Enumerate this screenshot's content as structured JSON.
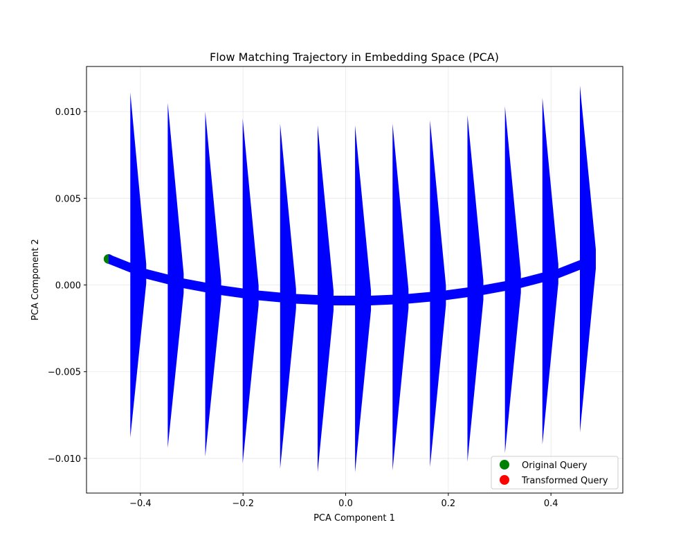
{
  "chart_data": {
    "type": "scatter",
    "title": "Flow Matching Trajectory in Embedding Space (PCA)",
    "xlabel": "PCA Component 1",
    "ylabel": "PCA Component 2",
    "xlim": [
      -0.505,
      0.54
    ],
    "ylim": [
      -0.012,
      0.0126
    ],
    "x_ticks": [
      -0.4,
      -0.2,
      0.0,
      0.2,
      0.4
    ],
    "x_tick_labels": [
      "−0.4",
      "−0.2",
      "0.0",
      "0.2",
      "0.4"
    ],
    "y_ticks": [
      -0.01,
      -0.005,
      0.0,
      0.005,
      0.01
    ],
    "y_tick_labels": [
      "−0.010",
      "−0.005",
      "0.000",
      "0.005",
      "0.010"
    ],
    "grid": true,
    "legend_position": "lower-right",
    "trajectory": {
      "x": [
        -0.462,
        -0.39,
        -0.317,
        -0.244,
        -0.171,
        -0.098,
        -0.025,
        0.048,
        0.121,
        0.194,
        0.267,
        0.34,
        0.413,
        0.486
      ],
      "y": [
        0.0015,
        0.00065,
        0.0001,
        -0.0003,
        -0.0006,
        -0.0008,
        -0.0009,
        -0.0009,
        -0.0008,
        -0.0006,
        -0.0003,
        0.0001,
        0.00065,
        0.0015
      ],
      "color": "#4a6fd8"
    },
    "arrows": {
      "color": "#0000ff",
      "tail_x": [
        -0.462,
        -0.39,
        -0.317,
        -0.244,
        -0.171,
        -0.098,
        -0.025,
        0.048,
        0.121,
        0.194,
        0.267,
        0.34,
        0.413
      ],
      "tail_y": [
        0.0015,
        0.00065,
        0.0001,
        -0.0003,
        -0.0006,
        -0.0008,
        -0.0009,
        -0.0009,
        -0.0008,
        -0.0006,
        -0.0003,
        0.0001,
        0.00065
      ],
      "head_x": [
        -0.39,
        -0.317,
        -0.244,
        -0.171,
        -0.098,
        -0.025,
        0.048,
        0.121,
        0.194,
        0.267,
        0.34,
        0.413,
        0.486
      ],
      "head_y": [
        0.00065,
        0.0001,
        -0.0003,
        -0.0006,
        -0.0008,
        -0.0009,
        -0.0009,
        -0.0008,
        -0.0006,
        -0.0003,
        0.0001,
        0.00065,
        0.0015
      ],
      "head_top_y": [
        0.0111,
        0.0105,
        0.01,
        0.0096,
        0.0093,
        0.0092,
        0.0092,
        0.0093,
        0.0095,
        0.0098,
        0.0103,
        0.0108,
        0.0115
      ],
      "head_bottom_y": [
        -0.0088,
        -0.0094,
        -0.0099,
        -0.0103,
        -0.0106,
        -0.0108,
        -0.0108,
        -0.0107,
        -0.0105,
        -0.0102,
        -0.0097,
        -0.0092,
        -0.0085
      ]
    },
    "series": [
      {
        "name": "Original Query",
        "x": [
          -0.462
        ],
        "y": [
          0.0015
        ],
        "color": "#008000"
      },
      {
        "name": "Transformed Query",
        "x": [
          0.486
        ],
        "y": [
          0.0015
        ],
        "color": "#ff0000"
      }
    ]
  }
}
